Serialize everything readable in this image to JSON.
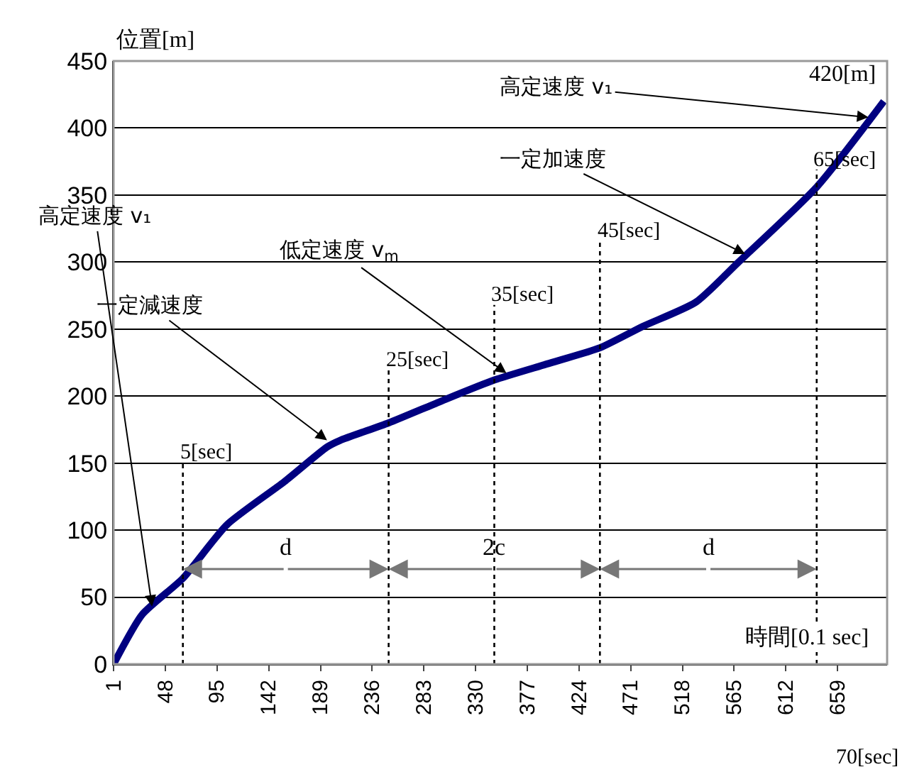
{
  "chart_data": {
    "type": "line",
    "xlabel": "時間[0.1 sec]",
    "ylabel": "位置[m]",
    "x": [
      1,
      27,
      64,
      104,
      156,
      195,
      207,
      251,
      298,
      347,
      395,
      443,
      482,
      530,
      569,
      640,
      701
    ],
    "series": [
      {
        "color": "#000080",
        "values": [
          0,
          37,
          64,
          104,
          136,
          162,
          167,
          180,
          196,
          212,
          224,
          236,
          252,
          270,
          300,
          356,
          420
        ]
      }
    ],
    "xlim": [
      1,
      704
    ],
    "xticks": [
      1,
      48,
      95,
      142,
      189,
      236,
      283,
      330,
      377,
      424,
      471,
      518,
      565,
      612,
      659
    ],
    "ylim": [
      0,
      450
    ],
    "yticks": [
      0,
      50,
      100,
      150,
      200,
      250,
      300,
      350,
      400,
      450
    ],
    "grid": "y",
    "marker": "none",
    "line_style": "solid",
    "ref_lines": [
      {
        "axis": "x",
        "value": 64,
        "label": "5[sec]",
        "line_style": "dotted",
        "color": "#000000"
      },
      {
        "axis": "x",
        "value": 251,
        "label": "25[sec]",
        "line_style": "dotted",
        "color": "#000000"
      },
      {
        "axis": "x",
        "value": 347,
        "label": "35[sec]",
        "line_style": "dotted",
        "color": "#000000"
      },
      {
        "axis": "x",
        "value": 443,
        "label": "45[sec]",
        "line_style": "dotted",
        "color": "#000000"
      },
      {
        "axis": "x",
        "value": 640,
        "label": "65[sec]",
        "line_style": "dotted",
        "color": "#000000"
      }
    ],
    "annotations": [
      {
        "text": "高定速度 v₁",
        "x": 36,
        "y": 43
      },
      {
        "text": "一定減速度",
        "x": 195,
        "y": 167
      },
      {
        "text": "低定速度 v$_{m}$",
        "x": 358,
        "y": 217
      },
      {
        "text": "一定加速度",
        "x": 575,
        "y": 306
      },
      {
        "text": "高定速度 v₁",
        "x": 687,
        "y": 408
      },
      {
        "text": "420[m]",
        "x": 701,
        "y": 420
      },
      {
        "text": "d",
        "x": 251,
        "y": 71
      },
      {
        "text": "2c",
        "x": 443,
        "y": 71
      },
      {
        "text": "d",
        "x": 640,
        "y": 71
      },
      "70[sec]"
    ]
  }
}
